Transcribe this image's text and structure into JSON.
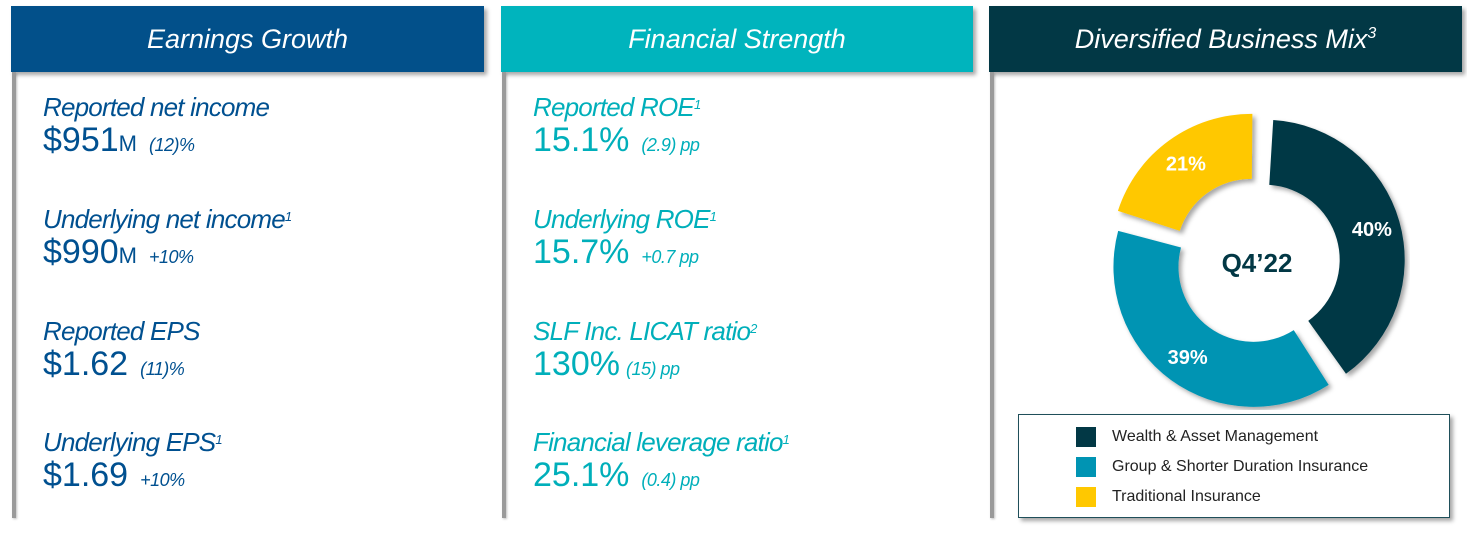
{
  "colors": {
    "earnings_header": "#02508A",
    "financial_header": "#00B4BD",
    "business_header": "#023845",
    "earnings_text": "#005090",
    "financial_text": "#00AFBA",
    "wealth": "#023845",
    "group": "#0094B3",
    "traditional": "#FFC800"
  },
  "earnings_growth": {
    "title": "Earnings Growth",
    "metrics": [
      {
        "label": "Reported net income",
        "sup": "",
        "value": "$951",
        "unit": "M",
        "change": "(12)%"
      },
      {
        "label": "Underlying net income",
        "sup": "1",
        "value": "$990",
        "unit": "M",
        "change": "+10%"
      },
      {
        "label": "Reported EPS",
        "sup": "",
        "value": "$1.62",
        "unit": "",
        "change": "(11)%"
      },
      {
        "label": "Underlying EPS",
        "sup": "1",
        "value": "$1.69",
        "unit": "",
        "change": "+10%"
      }
    ]
  },
  "financial_strength": {
    "title": "Financial Strength",
    "metrics": [
      {
        "label": "Reported ROE",
        "sup": "1",
        "value": "15.1%",
        "change": "(2.9) pp"
      },
      {
        "label": "Underlying ROE",
        "sup": "1",
        "value": "15.7%",
        "change": "+0.7 pp"
      },
      {
        "label": "SLF Inc. LICAT ratio",
        "sup": "2",
        "value": "130%",
        "change": "(15) pp"
      },
      {
        "label": "Financial leverage ratio",
        "sup": "1",
        "value": "25.1%",
        "change": "(0.4) pp"
      }
    ]
  },
  "business_mix": {
    "title": "Diversified Business Mix",
    "title_sup": "3",
    "center_label": "Q4’22",
    "legend": [
      {
        "label": "Wealth & Asset Management",
        "color": "#023845"
      },
      {
        "label": "Group & Shorter Duration Insurance",
        "color": "#0094B3"
      },
      {
        "label": "Traditional Insurance",
        "color": "#FFC800"
      }
    ]
  },
  "chart_data": {
    "type": "pie",
    "title": "Diversified Business Mix",
    "subtitle": "Q4’22",
    "donut": true,
    "categories": [
      "Wealth & Asset Management",
      "Group & Shorter Duration Insurance",
      "Traditional Insurance"
    ],
    "values": [
      40,
      39,
      21
    ],
    "labels": [
      "40%",
      "39%",
      "21%"
    ],
    "colors": [
      "#023845",
      "#0094B3",
      "#FFC800"
    ],
    "legend_position": "bottom"
  }
}
